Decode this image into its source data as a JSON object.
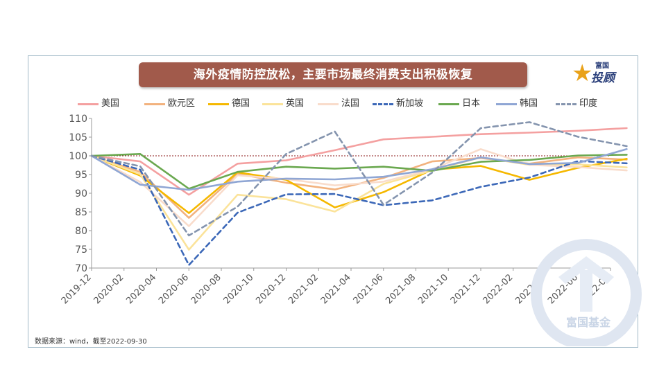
{
  "title": "海外疫情防控放松，主要市场最终消费支出积极恢复",
  "brand": {
    "top": "富国",
    "main": "投顾",
    "star_icon": "star-icon"
  },
  "source": "数据来源：wind，截至2022-09-30",
  "watermark_text": "富国基金",
  "chart_data": {
    "type": "line",
    "xlabel": "",
    "ylabel": "",
    "ylim": [
      70,
      110
    ],
    "yticks": [
      70,
      75,
      80,
      85,
      90,
      95,
      100,
      105,
      110
    ],
    "categories": [
      "2019-12",
      "2020-02",
      "2020-04",
      "2020-06",
      "2020-08",
      "2020-10",
      "2020-12",
      "2021-02",
      "2021-04",
      "2021-06",
      "2021-08",
      "2021-10",
      "2021-12",
      "2022-02",
      "2022-04",
      "2022-06",
      "2022-08"
    ],
    "reference_line": 100,
    "grid": false,
    "legend_position": "top",
    "series": [
      {
        "name": "美国",
        "color": "#f4a0a0",
        "dash": false,
        "x": [
          0,
          1.5,
          3,
          4.5,
          6,
          7.5,
          9,
          10.5,
          12,
          13.5,
          15,
          16.5
        ],
        "values": [
          100,
          98.5,
          89.6,
          97.9,
          98.8,
          101.5,
          104.4,
          105.1,
          105.8,
          106.2,
          106.7,
          107.4
        ]
      },
      {
        "name": "欧元区",
        "color": "#f2b27e",
        "dash": false,
        "x": [
          0,
          1.5,
          3,
          4.5,
          6,
          7.5,
          9,
          10.5,
          12,
          13.5,
          15,
          16.5
        ],
        "values": [
          100,
          95.7,
          83.4,
          95.2,
          92.8,
          91.0,
          94.1,
          98.5,
          99.4,
          97.9,
          99.6,
          99.0
        ]
      },
      {
        "name": "德国",
        "color": "#f5b800",
        "dash": false,
        "x": [
          0,
          1.5,
          3,
          4.5,
          6,
          7.5,
          9,
          10.5,
          12,
          13.5,
          15,
          16.5
        ],
        "values": [
          100,
          94.7,
          84.7,
          95.6,
          93.6,
          86.2,
          90.3,
          96.3,
          97.3,
          93.6,
          96.8,
          99.2
        ]
      },
      {
        "name": "英国",
        "color": "#fbe39a",
        "dash": false,
        "x": [
          0,
          1.5,
          3,
          4.5,
          6,
          7.5,
          9,
          10.5,
          12,
          13.5,
          15,
          16.5
        ],
        "values": [
          100,
          95.1,
          74.9,
          89.6,
          88.4,
          85.1,
          92.5,
          96.1,
          99.6,
          97.6,
          97.7,
          96.9
        ]
      },
      {
        "name": "法国",
        "color": "#f9dccb",
        "dash": false,
        "x": [
          0,
          1.5,
          3,
          4.5,
          6,
          7.5,
          9,
          10.5,
          12,
          13.5,
          15,
          16.5
        ],
        "values": [
          100,
          93.0,
          81.2,
          94.8,
          93.8,
          92.1,
          93.1,
          96.4,
          101.8,
          97.6,
          97.0,
          96.1
        ]
      },
      {
        "name": "新加坡",
        "color": "#3c68b8",
        "dash": true,
        "x": [
          0,
          1.5,
          3,
          4.5,
          6,
          7.5,
          9,
          10.5,
          12,
          13.5,
          15,
          16.5
        ],
        "values": [
          100,
          96.3,
          70.8,
          84.8,
          89.7,
          89.8,
          86.8,
          88.1,
          91.7,
          94.2,
          98.6,
          98.0
        ]
      },
      {
        "name": "日本",
        "color": "#6aa84f",
        "dash": false,
        "x": [
          0,
          1.5,
          3,
          4.5,
          6,
          7.5,
          9,
          10.5,
          12,
          13.5,
          15,
          16.5
        ],
        "values": [
          100,
          100.5,
          91.2,
          95.7,
          97.1,
          96.6,
          97.1,
          96.0,
          98.4,
          98.9,
          100.1,
          100.3
        ]
      },
      {
        "name": "韩国",
        "color": "#8fa6d4",
        "dash": false,
        "x": [
          0,
          1.5,
          3,
          4.5,
          6,
          7.5,
          9,
          10.5,
          12,
          13.5,
          15,
          16.5
        ],
        "values": [
          100,
          92.3,
          90.9,
          93.1,
          93.9,
          93.7,
          94.4,
          96.4,
          99.6,
          97.8,
          98.1,
          101.8
        ]
      },
      {
        "name": "印度",
        "color": "#8494ae",
        "dash": true,
        "x": [
          0,
          1.5,
          3,
          4.5,
          6,
          7.5,
          9,
          10.5,
          12,
          13.5,
          15,
          16.5
        ],
        "values": [
          100,
          97.2,
          78.7,
          86.4,
          100.5,
          106.5,
          86.9,
          95.5,
          107.4,
          109.0,
          105.1,
          102.6
        ]
      }
    ]
  }
}
